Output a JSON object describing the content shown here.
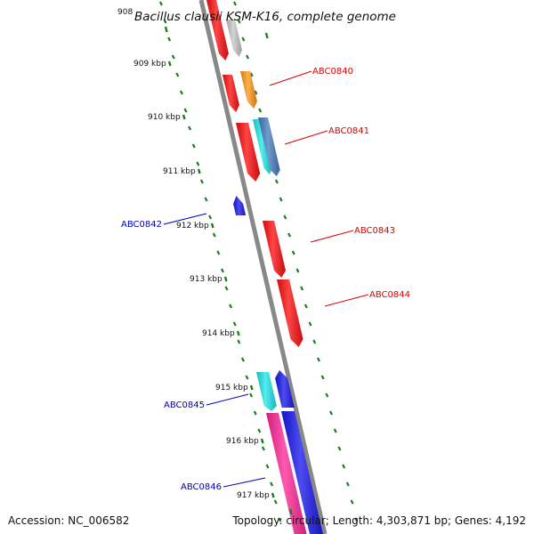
{
  "title": "Bacillus clausii KSM-K16, complete genome",
  "footer": {
    "accession": "Accession: NC_006582",
    "summary": "Topology: circular; Length: 4,303,871 bp; Genes: 4,192"
  },
  "top_label": "908",
  "colors": {
    "backbone": "#888888",
    "ticks": "#1a7f1a",
    "forward_label": "#dd0000",
    "reverse_label": "#0000bb"
  },
  "ticks": [
    "909 kbp",
    "910 kbp",
    "911 kbp",
    "912 kbp",
    "913 kbp",
    "914 kbp",
    "915 kbp",
    "916 kbp",
    "917 kbp"
  ],
  "gene_labels": [
    {
      "text": "ABC0840",
      "strand": "forward"
    },
    {
      "text": "ABC0841",
      "strand": "forward"
    },
    {
      "text": "ABC0842",
      "strand": "reverse"
    },
    {
      "text": "ABC0843",
      "strand": "forward"
    },
    {
      "text": "ABC0844",
      "strand": "forward"
    },
    {
      "text": "ABC0845",
      "strand": "reverse"
    },
    {
      "text": "ABC0846",
      "strand": "reverse"
    }
  ],
  "features": [
    {
      "name": "gene-feature-1",
      "color": "#ff1111"
    },
    {
      "name": "gene-feature-2",
      "color": "#c8c8c8"
    },
    {
      "name": "gene-feature-3",
      "color": "#ff1111"
    },
    {
      "name": "gene-feature-4",
      "color": "#ff9a1a"
    },
    {
      "name": "gene-feature-5",
      "color": "#ff1111"
    },
    {
      "name": "gene-feature-6",
      "color": "#22e8e8"
    },
    {
      "name": "gene-feature-7",
      "color": "#4a7fc0"
    },
    {
      "name": "gene-feature-8",
      "color": "#1a1aee"
    },
    {
      "name": "gene-feature-9",
      "color": "#ff1111"
    },
    {
      "name": "gene-feature-10",
      "color": "#ff1111"
    },
    {
      "name": "gene-feature-11",
      "color": "#22e8e8"
    },
    {
      "name": "gene-feature-12",
      "color": "#1a1aee"
    },
    {
      "name": "gene-feature-13",
      "color": "#ff2a9a"
    },
    {
      "name": "gene-feature-14",
      "color": "#1a1aee"
    }
  ]
}
